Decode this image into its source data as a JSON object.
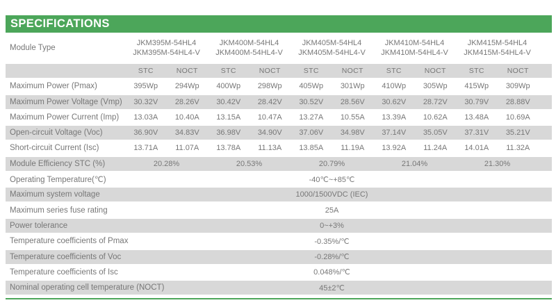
{
  "header": {
    "title": "SPECIFICATIONS"
  },
  "colors": {
    "accent_green": "#4CA65A",
    "row_gray": "#D8D8D8",
    "text_gray": "#777777",
    "title_text": "#FFFFFF"
  },
  "table": {
    "module_type_label": "Module Type",
    "modules": [
      {
        "line1": "JKM395M-54HL4",
        "line2": "JKM395M-54HL4-V"
      },
      {
        "line1": "JKM400M-54HL4",
        "line2": "JKM400M-54HL4-V"
      },
      {
        "line1": "JKM405M-54HL4",
        "line2": "JKM405M-54HL4-V"
      },
      {
        "line1": "JKM410M-54HL4",
        "line2": "JKM410M-54HL4-V"
      },
      {
        "line1": "JKM415M-54HL4",
        "line2": "JKM415M-54HL4-V"
      }
    ],
    "condition_headers": [
      "STC",
      "NOCT",
      "STC",
      "NOCT",
      "STC",
      "NOCT",
      "STC",
      "NOCT",
      "STC",
      "NOCT"
    ],
    "data_rows": [
      {
        "label": "Maximum Power (Pmax)",
        "values": [
          "395Wp",
          "294Wp",
          "400Wp",
          "298Wp",
          "405Wp",
          "301Wp",
          "410Wp",
          "305Wp",
          "415Wp",
          "309Wp"
        ]
      },
      {
        "label": "Maximum Power Voltage (Vmp)",
        "values": [
          "30.32V",
          "28.26V",
          "30.42V",
          "28.42V",
          "30.52V",
          "28.56V",
          "30.62V",
          "28.72V",
          "30.79V",
          "28.88V"
        ]
      },
      {
        "label": "Maximum Power Current (Imp)",
        "values": [
          "13.03A",
          "10.40A",
          "13.15A",
          "10.47A",
          "13.27A",
          "10.55A",
          "13.39A",
          "10.62A",
          "13.48A",
          "10.69A"
        ]
      },
      {
        "label": "Open-circuit Voltage (Voc)",
        "values": [
          "36.90V",
          "34.83V",
          "36.98V",
          "34.90V",
          "37.06V",
          "34.98V",
          "37.14V",
          "35.05V",
          "37.31V",
          "35.21V"
        ]
      },
      {
        "label": "Short-circuit Current (Isc)",
        "values": [
          "13.71A",
          "11.07A",
          "13.78A",
          "11.13A",
          "13.85A",
          "11.19A",
          "13.92A",
          "11.24A",
          "14.01A",
          "11.32A"
        ]
      }
    ],
    "efficiency_row": {
      "label": "Module Efficiency STC (%)",
      "values": [
        "20.28%",
        "20.53%",
        "20.79%",
        "21.04%",
        "21.30%"
      ]
    },
    "full_rows": [
      {
        "label": "Operating Temperature(℃)",
        "value": "-40℃~+85℃"
      },
      {
        "label": "Maximum system voltage",
        "value": "1000/1500VDC (IEC)"
      },
      {
        "label": "Maximum series fuse rating",
        "value": "25A"
      },
      {
        "label": "Power tolerance",
        "value": "0~+3%"
      },
      {
        "label": "Temperature coefficients of Pmax",
        "value": "-0.35%/℃"
      },
      {
        "label": "Temperature coefficients of Voc",
        "value": "-0.28%/℃"
      },
      {
        "label": "Temperature coefficients of Isc",
        "value": "0.048%/℃"
      },
      {
        "label": "Nominal operating cell temperature  (NOCT)",
        "value": "45±2℃"
      }
    ]
  }
}
